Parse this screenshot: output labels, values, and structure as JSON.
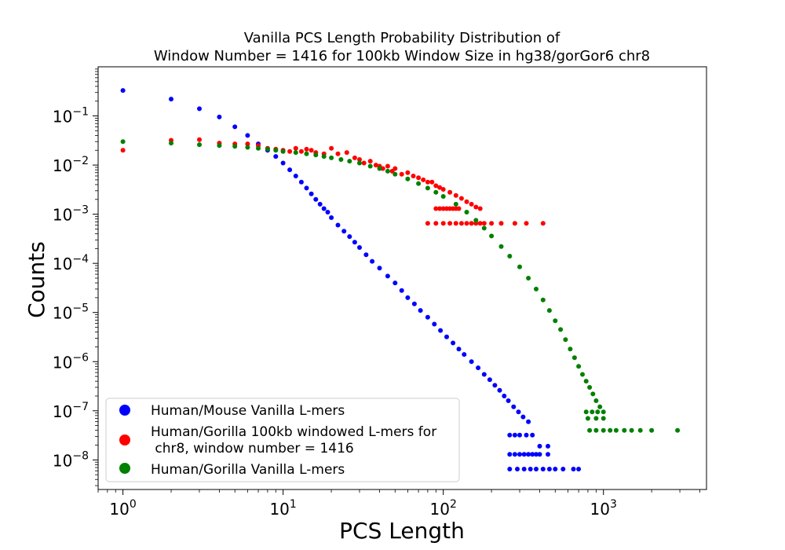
{
  "chart_data": {
    "type": "scatter",
    "title_lines": [
      "Vanilla PCS Length Probability Distribution of",
      "Window Number = 1416 for 100kb Window Size in hg38/gorGor6 chr8"
    ],
    "xlabel": "PCS Length",
    "ylabel": "Counts",
    "xscale": "log",
    "yscale": "log",
    "xlim": [
      0.7,
      4400
    ],
    "ylim": [
      2.5e-09,
      1.0
    ],
    "x_ticks": [
      {
        "value": 1,
        "base": "10",
        "exp": "0"
      },
      {
        "value": 10,
        "base": "10",
        "exp": "1"
      },
      {
        "value": 100,
        "base": "10",
        "exp": "2"
      },
      {
        "value": 1000,
        "base": "10",
        "exp": "3"
      }
    ],
    "y_ticks": [
      {
        "value": 0.1,
        "base": "10",
        "exp": "−1"
      },
      {
        "value": 0.01,
        "base": "10",
        "exp": "−2"
      },
      {
        "value": 0.001,
        "base": "10",
        "exp": "−3"
      },
      {
        "value": 0.0001,
        "base": "10",
        "exp": "−4"
      },
      {
        "value": 1e-05,
        "base": "10",
        "exp": "−5"
      },
      {
        "value": 1e-06,
        "base": "10",
        "exp": "−6"
      },
      {
        "value": 1e-07,
        "base": "10",
        "exp": "−7"
      },
      {
        "value": 1e-08,
        "base": "10",
        "exp": "−8"
      }
    ],
    "grid": false,
    "legend_position": "bottom-left",
    "series": [
      {
        "name": "Human/Mouse Vanilla L-mers",
        "color": "#0000ff",
        "points": [
          [
            1,
            0.33
          ],
          [
            2,
            0.22
          ],
          [
            3,
            0.14
          ],
          [
            4,
            0.095
          ],
          [
            5,
            0.06
          ],
          [
            6,
            0.04
          ],
          [
            7,
            0.027
          ],
          [
            8,
            0.02
          ],
          [
            9,
            0.015
          ],
          [
            10,
            0.011
          ],
          [
            11,
            0.008
          ],
          [
            12,
            0.006
          ],
          [
            13,
            0.0045
          ],
          [
            14,
            0.0034
          ],
          [
            15,
            0.0026
          ],
          [
            16,
            0.002
          ],
          [
            17,
            0.0016
          ],
          [
            18,
            0.0013
          ],
          [
            19,
            0.0011
          ],
          [
            20,
            0.00085
          ],
          [
            22,
            0.0006
          ],
          [
            24,
            0.00045
          ],
          [
            26,
            0.00035
          ],
          [
            28,
            0.00027
          ],
          [
            30,
            0.00021
          ],
          [
            33,
            0.00015
          ],
          [
            36,
            0.00011
          ],
          [
            40,
            8e-05
          ],
          [
            45,
            5.5e-05
          ],
          [
            50,
            4e-05
          ],
          [
            55,
            2.8e-05
          ],
          [
            60,
            2e-05
          ],
          [
            66,
            1.5e-05
          ],
          [
            72,
            1.1e-05
          ],
          [
            80,
            8e-06
          ],
          [
            88,
            5.8e-06
          ],
          [
            96,
            4.3e-06
          ],
          [
            105,
            3.2e-06
          ],
          [
            115,
            2.4e-06
          ],
          [
            125,
            1.8e-06
          ],
          [
            135,
            1.4e-06
          ],
          [
            150,
            1e-06
          ],
          [
            165,
            7.5e-07
          ],
          [
            180,
            5.5e-07
          ],
          [
            195,
            4.3e-07
          ],
          [
            210,
            3.3e-07
          ],
          [
            225,
            2.6e-07
          ],
          [
            240,
            2e-07
          ],
          [
            255,
            1.6e-07
          ],
          [
            275,
            1.2e-07
          ],
          [
            295,
            9.5e-08
          ],
          [
            315,
            7.5e-08
          ],
          [
            340,
            6e-08
          ],
          [
            260,
            3.2e-08
          ],
          [
            280,
            3.2e-08
          ],
          [
            300,
            3.2e-08
          ],
          [
            330,
            3.2e-08
          ],
          [
            360,
            3.2e-08
          ],
          [
            400,
            1.9e-08
          ],
          [
            450,
            1.9e-08
          ],
          [
            260,
            1.3e-08
          ],
          [
            280,
            1.3e-08
          ],
          [
            300,
            1.3e-08
          ],
          [
            320,
            1.3e-08
          ],
          [
            340,
            1.3e-08
          ],
          [
            360,
            1.3e-08
          ],
          [
            380,
            1.3e-08
          ],
          [
            400,
            1.3e-08
          ],
          [
            450,
            1.3e-08
          ],
          [
            260,
            6.5e-09
          ],
          [
            290,
            6.5e-09
          ],
          [
            320,
            6.5e-09
          ],
          [
            350,
            6.5e-09
          ],
          [
            380,
            6.5e-09
          ],
          [
            420,
            6.5e-09
          ],
          [
            460,
            6.5e-09
          ],
          [
            500,
            6.5e-09
          ],
          [
            560,
            6.5e-09
          ],
          [
            650,
            6.5e-09
          ],
          [
            700,
            6.5e-09
          ]
        ]
      },
      {
        "name": "Human/Gorilla 100kb windowed L-mers for chr8, window number = 1416",
        "color": "#ff0000",
        "points": [
          [
            1,
            0.02
          ],
          [
            2,
            0.032
          ],
          [
            3,
            0.033
          ],
          [
            4,
            0.028
          ],
          [
            5,
            0.027
          ],
          [
            6,
            0.027
          ],
          [
            7,
            0.025
          ],
          [
            8,
            0.022
          ],
          [
            9,
            0.021
          ],
          [
            10,
            0.02
          ],
          [
            11,
            0.019
          ],
          [
            12,
            0.022
          ],
          [
            13,
            0.019
          ],
          [
            14,
            0.021
          ],
          [
            15,
            0.02
          ],
          [
            16,
            0.018
          ],
          [
            18,
            0.017
          ],
          [
            20,
            0.022
          ],
          [
            22,
            0.017
          ],
          [
            25,
            0.018
          ],
          [
            28,
            0.014
          ],
          [
            30,
            0.013
          ],
          [
            32,
            0.011
          ],
          [
            35,
            0.012
          ],
          [
            38,
            0.01
          ],
          [
            40,
            0.0095
          ],
          [
            42,
            0.0085
          ],
          [
            45,
            0.0095
          ],
          [
            48,
            0.0075
          ],
          [
            50,
            0.0085
          ],
          [
            55,
            0.0065
          ],
          [
            60,
            0.007
          ],
          [
            65,
            0.006
          ],
          [
            70,
            0.0055
          ],
          [
            75,
            0.005
          ],
          [
            80,
            0.0045
          ],
          [
            85,
            0.0045
          ],
          [
            90,
            0.0038
          ],
          [
            95,
            0.0035
          ],
          [
            100,
            0.0032
          ],
          [
            110,
            0.0028
          ],
          [
            120,
            0.0024
          ],
          [
            130,
            0.0021
          ],
          [
            140,
            0.0018
          ],
          [
            150,
            0.0016
          ],
          [
            160,
            0.0014
          ],
          [
            170,
            0.0013
          ],
          [
            90,
            0.0013
          ],
          [
            95,
            0.0013
          ],
          [
            100,
            0.0013
          ],
          [
            105,
            0.0013
          ],
          [
            110,
            0.0013
          ],
          [
            115,
            0.0013
          ],
          [
            120,
            0.0013
          ],
          [
            125,
            0.0013
          ],
          [
            80,
            0.00065
          ],
          [
            90,
            0.00065
          ],
          [
            100,
            0.00065
          ],
          [
            110,
            0.00065
          ],
          [
            120,
            0.00065
          ],
          [
            130,
            0.00065
          ],
          [
            140,
            0.00065
          ],
          [
            150,
            0.00065
          ],
          [
            160,
            0.00065
          ],
          [
            170,
            0.00065
          ],
          [
            180,
            0.00065
          ],
          [
            200,
            0.00065
          ],
          [
            230,
            0.00065
          ],
          [
            280,
            0.00065
          ],
          [
            330,
            0.00065
          ],
          [
            420,
            0.00065
          ]
        ]
      },
      {
        "name": "Human/Gorilla Vanilla L-mers",
        "color": "#008000",
        "points": [
          [
            1,
            0.03
          ],
          [
            2,
            0.028
          ],
          [
            3,
            0.026
          ],
          [
            4,
            0.025
          ],
          [
            5,
            0.024
          ],
          [
            6,
            0.023
          ],
          [
            7,
            0.022
          ],
          [
            8,
            0.021
          ],
          [
            9,
            0.02
          ],
          [
            10,
            0.019
          ],
          [
            12,
            0.018
          ],
          [
            14,
            0.017
          ],
          [
            16,
            0.016
          ],
          [
            18,
            0.015
          ],
          [
            20,
            0.014
          ],
          [
            23,
            0.013
          ],
          [
            26,
            0.012
          ],
          [
            30,
            0.011
          ],
          [
            35,
            0.0095
          ],
          [
            40,
            0.0085
          ],
          [
            45,
            0.0075
          ],
          [
            50,
            0.0065
          ],
          [
            60,
            0.0052
          ],
          [
            70,
            0.0042
          ],
          [
            80,
            0.0034
          ],
          [
            90,
            0.0028
          ],
          [
            100,
            0.0023
          ],
          [
            120,
            0.0016
          ],
          [
            140,
            0.0011
          ],
          [
            160,
            0.00075
          ],
          [
            180,
            0.00052
          ],
          [
            200,
            0.00036
          ],
          [
            230,
            0.00022
          ],
          [
            260,
            0.00014
          ],
          [
            300,
            8.5e-05
          ],
          [
            340,
            5e-05
          ],
          [
            380,
            3e-05
          ],
          [
            420,
            1.8e-05
          ],
          [
            460,
            1.1e-05
          ],
          [
            500,
            6.8e-06
          ],
          [
            540,
            4.5e-06
          ],
          [
            580,
            2.8e-06
          ],
          [
            620,
            1.8e-06
          ],
          [
            660,
            1.2e-06
          ],
          [
            700,
            8e-07
          ],
          [
            740,
            5.5e-07
          ],
          [
            780,
            4e-07
          ],
          [
            820,
            3e-07
          ],
          [
            860,
            2.2e-07
          ],
          [
            900,
            1.6e-07
          ],
          [
            950,
            1.2e-07
          ],
          [
            780,
            9.5e-08
          ],
          [
            850,
            9.5e-08
          ],
          [
            920,
            9.5e-08
          ],
          [
            1000,
            9.5e-08
          ],
          [
            800,
            7e-08
          ],
          [
            900,
            7e-08
          ],
          [
            1000,
            7e-08
          ],
          [
            820,
            4e-08
          ],
          [
            900,
            4e-08
          ],
          [
            1000,
            4e-08
          ],
          [
            1100,
            4e-08
          ],
          [
            1200,
            4e-08
          ],
          [
            1350,
            4e-08
          ],
          [
            1500,
            4e-08
          ],
          [
            1700,
            4e-08
          ],
          [
            2000,
            4e-08
          ],
          [
            2900,
            4e-08
          ]
        ]
      }
    ]
  },
  "legend": {
    "items": [
      {
        "color": "#0000ff",
        "line1": "Human/Mouse Vanilla L-mers",
        "line2": ""
      },
      {
        "color": "#ff0000",
        "line1": "Human/Gorilla 100kb windowed L-mers for",
        "line2": " chr8, window number = 1416"
      },
      {
        "color": "#008000",
        "line1": "Human/Gorilla Vanilla L-mers",
        "line2": ""
      }
    ]
  }
}
